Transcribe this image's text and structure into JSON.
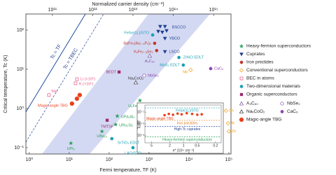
{
  "chart_data": {
    "type": "scatter",
    "x_label": "Fermi temperature, TF (K)",
    "y_label": "Critical temperature, Tc (K)",
    "x2_label": "Normalized carrier density (cm⁻²)",
    "xscale": "log",
    "yscale": "log",
    "legend": "right",
    "xlim": [
      0.82,
      113000
    ],
    "ylim": [
      0.069,
      257
    ],
    "xticks": [
      {
        "value": 1,
        "label": "10⁰"
      },
      {
        "value": 10,
        "label": "10¹"
      },
      {
        "value": 100,
        "label": "10²"
      },
      {
        "value": 1000,
        "label": "10³"
      },
      {
        "value": 10000,
        "label": "10⁴"
      },
      {
        "value": 100000,
        "label": "10⁵"
      }
    ],
    "yticks": [
      {
        "value": 0.1,
        "label": "10⁻¹"
      },
      {
        "value": 1,
        "label": "10⁰"
      },
      {
        "value": 10,
        "label": "10¹"
      },
      {
        "value": 100,
        "label": "10²"
      }
    ],
    "x2lim": [
      22000000000,
      2700000000000000
    ],
    "x2ticks": [
      {
        "value": 100000000000,
        "label": "10¹¹"
      },
      {
        "value": 1000000000000,
        "label": "10¹²"
      },
      {
        "value": 10000000000000,
        "label": "10¹³"
      },
      {
        "value": 100000000000000,
        "label": "10¹⁴"
      },
      {
        "value": 1000000000000000,
        "label": "10¹⁵"
      }
    ],
    "annotations": [
      "Tc = TF",
      "Tc = TBEC"
    ],
    "series": [
      {
        "name": "Heavy-fermion superconductors",
        "color": "#2ca05a",
        "marker": "star",
        "x": [
          590,
          160,
          145,
          66,
          11
        ],
        "values": [
          1.6,
          0.64,
          0.39,
          0.26,
          0.13
        ],
        "labels": [
          "U₆Fe",
          "UPd₂Al₃",
          "URu₂Si₂",
          "UBe₁₃",
          "UPt₃"
        ]
      },
      {
        "name": "Cuprates",
        "color": "#1f3f8f",
        "marker": "triangle-down",
        "x": [
          1900,
          2500,
          1700,
          2150,
          2750,
          2500,
          2500
        ],
        "values": [
          123,
          123,
          92,
          88,
          96,
          61,
          28
        ],
        "labels": [
          "BSCCO",
          null,
          null,
          null,
          null,
          "YBCO",
          "LSCO"
        ]
      },
      {
        "name": "Iron pnictides",
        "color": "#c0392b",
        "marker": "circle",
        "x": [
          1380,
          1550
        ],
        "values": [
          46,
          30
        ],
        "labels": [
          "BaFe₂(As₁₋ₓPₓ)₂",
          "KₓFe₂₋ᵧSe₂"
        ]
      },
      {
        "name": "Conventional superconductors",
        "color": "#f39c12",
        "marker": "diamond-open",
        "x": [
          11000,
          85000,
          95000,
          100000
        ],
        "values": [
          9.6,
          0.88,
          0.42,
          0.26
        ],
        "labels": [
          "Nb",
          "Sn",
          "Al",
          "Zn"
        ]
      },
      {
        "name": "BEC in atoms",
        "color": "#e75480",
        "marker": "square-open",
        "x": [
          3.1,
          15.6,
          14.4
        ],
        "values": [
          2.2,
          5.6,
          4.4
        ],
        "labels": [
          "³He",
          "Li (×10⁵)",
          "K (×10⁵)"
        ]
      },
      {
        "name": "Two-dimensional materials",
        "color": "#1a9fb5",
        "marker": "circle",
        "x": [
          1230,
          7200,
          5600,
          117,
          395
        ],
        "values": [
          75,
          12.8,
          20,
          0.17,
          0.1
        ],
        "labels": [
          "FeSe(1L)/STO",
          "MoS₂ EDLT",
          "ZrNCl EDLT",
          "SrTiO₃ EDLT",
          "LAO/STO"
        ]
      },
      {
        "name": "Organic superconductors",
        "color": "#9b2d6e",
        "marker": "square",
        "x": [
          177,
          89
        ],
        "values": [
          8.5,
          0.5
        ],
        "labels": [
          "BEDT",
          "TMTSF"
        ]
      },
      {
        "name": "A₃C₆₀",
        "color": "#7b4fa0",
        "marker": "triangle-up-open",
        "x": [
          1040
        ],
        "values": [
          22
        ],
        "labels": [
          "A₃C₆₀"
        ]
      },
      {
        "name": "NbSe₂",
        "color": "#8e44ad",
        "marker": "circle-open",
        "x": [
          755
        ],
        "values": [
          6.9
        ],
        "labels": [
          "NbSe₂"
        ]
      },
      {
        "name": "NaₓCoO₂",
        "color": "#333333",
        "marker": "triangle-up-open",
        "x": [
          465
        ],
        "values": [
          4.6
        ],
        "labels": [
          "NaₓCoO₂"
        ]
      },
      {
        "name": "CaC₆",
        "color": "#8e44ad",
        "marker": "circle",
        "x": [
          35000
        ],
        "values": [
          10.4
        ],
        "labels": [
          "CaC₆"
        ]
      },
      {
        "name": "Magic-angle TBG",
        "color": "#e8401c",
        "marker": "big-circle",
        "x": [
          11.7,
          15.6,
          18.3
        ],
        "values": [
          1.33,
          1.78,
          2.2
        ],
        "labels": [
          "Magic-angle TBG",
          null,
          null
        ]
      }
    ],
    "inset": {
      "type": "scatter",
      "x_label": "n* (10¹¹ cm⁻²)",
      "y_label": "Tc/TF",
      "xscale": "log",
      "yscale": "log",
      "xlim": [
        7,
        0.15
      ],
      "ylim": [
        0.00025,
        0.4
      ],
      "xticks": [
        5,
        2,
        1,
        0.5,
        0.2
      ],
      "yticks": [
        {
          "value": 0.1,
          "label": "10⁻¹"
        },
        {
          "value": 0.01,
          "label": "10⁻²"
        },
        {
          "value": 0.001,
          "label": "10⁻³"
        }
      ],
      "lines": [
        {
          "name": "FeSe(1L)/STO",
          "color": "#1a9fb5",
          "value": 0.23
        },
        {
          "name": "Iron pnictides",
          "color": "#e67e22",
          "value": 0.02
        },
        {
          "name": "High-Tc cuprates",
          "color": "#1f3f8f",
          "value": 0.006
        },
        {
          "name": "Heavy-fermion superconductors",
          "color": "#2ca05a",
          "value": 0.0008
        }
      ],
      "series": [
        {
          "name": "Magic-angle TBG",
          "color": "#e8401c",
          "x": [
            2.6,
            2.1,
            1.7,
            1.35,
            1.1,
            0.85,
            0.65,
            0.5,
            0.4
          ],
          "values": [
            0.055,
            0.07,
            0.06,
            0.075,
            0.065,
            0.08,
            0.07,
            0.06,
            0.065
          ]
        }
      ]
    }
  }
}
